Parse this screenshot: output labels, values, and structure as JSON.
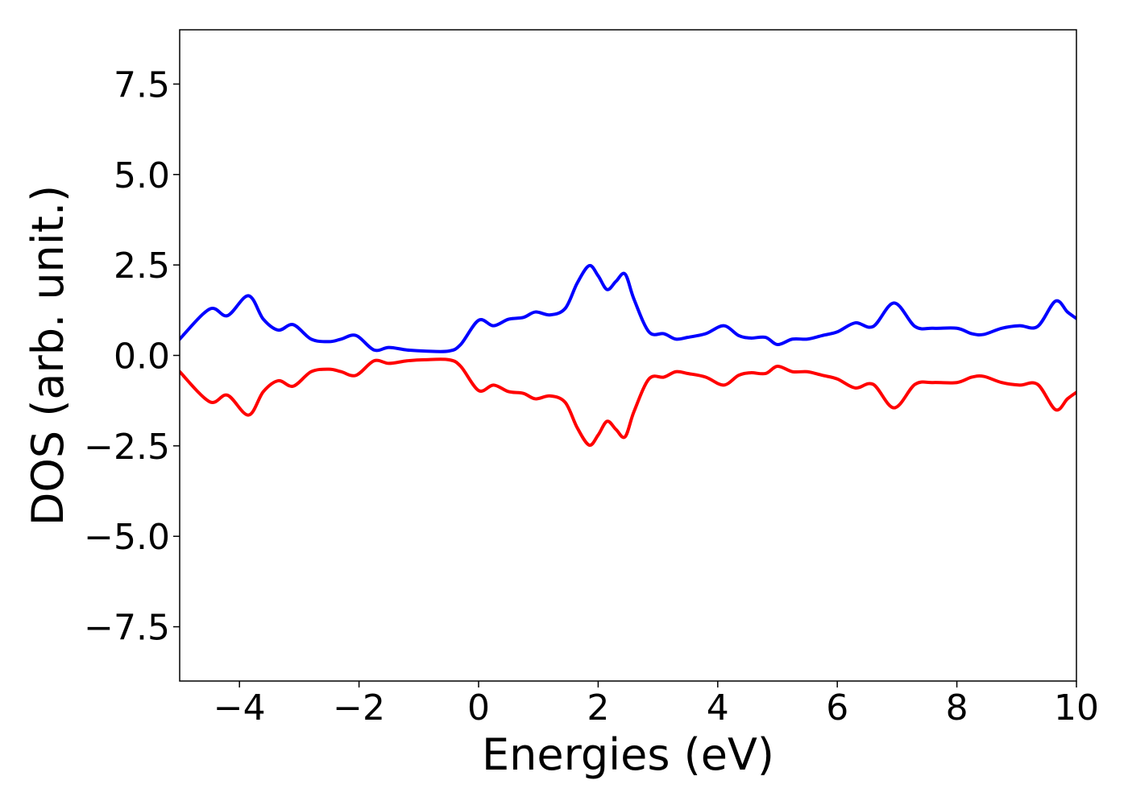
{
  "chart_data": {
    "type": "line",
    "xlabel": "Energies (eV)",
    "ylabel": "DOS (arb. unit.)",
    "xlim": [
      -5,
      10
    ],
    "ylim": [
      -9,
      9
    ],
    "xticks": [
      -4,
      -2,
      0,
      2,
      4,
      6,
      8,
      10
    ],
    "xtick_labels": [
      "−4",
      "−2",
      "0",
      "2",
      "4",
      "6",
      "8",
      "10"
    ],
    "yticks": [
      -7.5,
      -5.0,
      -2.5,
      0.0,
      2.5,
      5.0,
      7.5
    ],
    "ytick_labels": [
      "−7.5",
      "−5.0",
      "−2.5",
      "0.0",
      "2.5",
      "5.0",
      "7.5"
    ],
    "grid": false,
    "series": [
      {
        "color": "#0000ff",
        "x": [
          -5.0,
          -4.5,
          -4.2,
          -3.85,
          -3.6,
          -3.35,
          -3.1,
          -2.8,
          -2.5,
          -2.3,
          -2.05,
          -1.75,
          -1.5,
          -1.2,
          -0.9,
          -0.5,
          -0.3,
          0.0,
          0.25,
          0.5,
          0.75,
          0.95,
          1.2,
          1.45,
          1.65,
          1.85,
          2.0,
          2.15,
          2.3,
          2.45,
          2.6,
          2.85,
          3.1,
          3.3,
          3.5,
          3.8,
          4.1,
          4.35,
          4.55,
          4.8,
          5.0,
          5.25,
          5.5,
          5.75,
          6.0,
          6.3,
          6.6,
          6.95,
          7.3,
          7.6,
          8.0,
          8.25,
          8.45,
          8.75,
          9.05,
          9.35,
          9.65,
          9.85,
          10.0
        ],
        "y": [
          0.45,
          1.28,
          1.1,
          1.65,
          1.0,
          0.7,
          0.85,
          0.45,
          0.38,
          0.45,
          0.55,
          0.15,
          0.22,
          0.15,
          0.12,
          0.12,
          0.3,
          0.97,
          0.82,
          1.0,
          1.05,
          1.2,
          1.12,
          1.3,
          2.0,
          2.48,
          2.2,
          1.82,
          2.05,
          2.25,
          1.55,
          0.65,
          0.6,
          0.45,
          0.5,
          0.6,
          0.82,
          0.55,
          0.48,
          0.5,
          0.3,
          0.45,
          0.45,
          0.55,
          0.65,
          0.9,
          0.8,
          1.45,
          0.8,
          0.75,
          0.75,
          0.6,
          0.58,
          0.75,
          0.82,
          0.8,
          1.5,
          1.2,
          1.02
        ]
      },
      {
        "color": "#ff0000",
        "x": [
          -5.0,
          -4.5,
          -4.2,
          -3.85,
          -3.6,
          -3.35,
          -3.1,
          -2.8,
          -2.5,
          -2.3,
          -2.05,
          -1.75,
          -1.5,
          -1.2,
          -0.9,
          -0.5,
          -0.3,
          0.0,
          0.25,
          0.5,
          0.75,
          0.95,
          1.2,
          1.45,
          1.65,
          1.85,
          2.0,
          2.15,
          2.3,
          2.45,
          2.6,
          2.85,
          3.1,
          3.3,
          3.5,
          3.8,
          4.1,
          4.35,
          4.55,
          4.8,
          5.0,
          5.25,
          5.5,
          5.75,
          6.0,
          6.3,
          6.6,
          6.95,
          7.3,
          7.6,
          8.0,
          8.25,
          8.45,
          8.75,
          9.05,
          9.35,
          9.65,
          9.85,
          10.0
        ],
        "y": [
          -0.45,
          -1.28,
          -1.1,
          -1.65,
          -1.0,
          -0.7,
          -0.85,
          -0.45,
          -0.38,
          -0.45,
          -0.55,
          -0.15,
          -0.22,
          -0.15,
          -0.12,
          -0.12,
          -0.3,
          -0.97,
          -0.82,
          -1.0,
          -1.05,
          -1.2,
          -1.12,
          -1.3,
          -2.0,
          -2.48,
          -2.2,
          -1.82,
          -2.05,
          -2.25,
          -1.55,
          -0.65,
          -0.6,
          -0.45,
          -0.5,
          -0.6,
          -0.82,
          -0.55,
          -0.48,
          -0.5,
          -0.3,
          -0.45,
          -0.45,
          -0.55,
          -0.65,
          -0.9,
          -0.8,
          -1.45,
          -0.8,
          -0.75,
          -0.75,
          -0.6,
          -0.58,
          -0.75,
          -0.82,
          -0.8,
          -1.5,
          -1.2,
          -1.02
        ]
      }
    ]
  }
}
